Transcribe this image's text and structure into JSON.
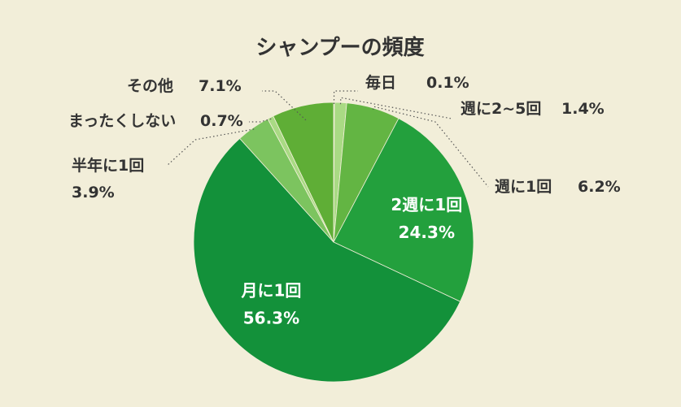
{
  "chart_data": {
    "type": "pie",
    "title": "シャンプーの頻度",
    "start_angle_deg": 0,
    "direction": "clockwise",
    "slices": [
      {
        "label": "毎日",
        "value": 0.1,
        "value_text": "0.1%",
        "color": "#b6e08e"
      },
      {
        "label": "週に2~5回",
        "value": 1.4,
        "value_text": "1.4%",
        "color": "#a9da84"
      },
      {
        "label": "週に1回",
        "value": 6.2,
        "value_text": "6.2%",
        "color": "#63b543"
      },
      {
        "label": "2週に1回",
        "value": 24.3,
        "value_text": "24.3%",
        "color": "#23a03d"
      },
      {
        "label": "月に1回",
        "value": 56.3,
        "value_text": "56.3%",
        "color": "#13913a"
      },
      {
        "label": "半年に1回",
        "value": 3.9,
        "value_text": "3.9%",
        "color": "#7cc45f"
      },
      {
        "label": "まったくしない",
        "value": 0.7,
        "value_text": "0.7%",
        "color": "#a9da84"
      },
      {
        "label": "その他",
        "value": 7.1,
        "value_text": "7.1%",
        "color": "#5fae36"
      }
    ]
  }
}
